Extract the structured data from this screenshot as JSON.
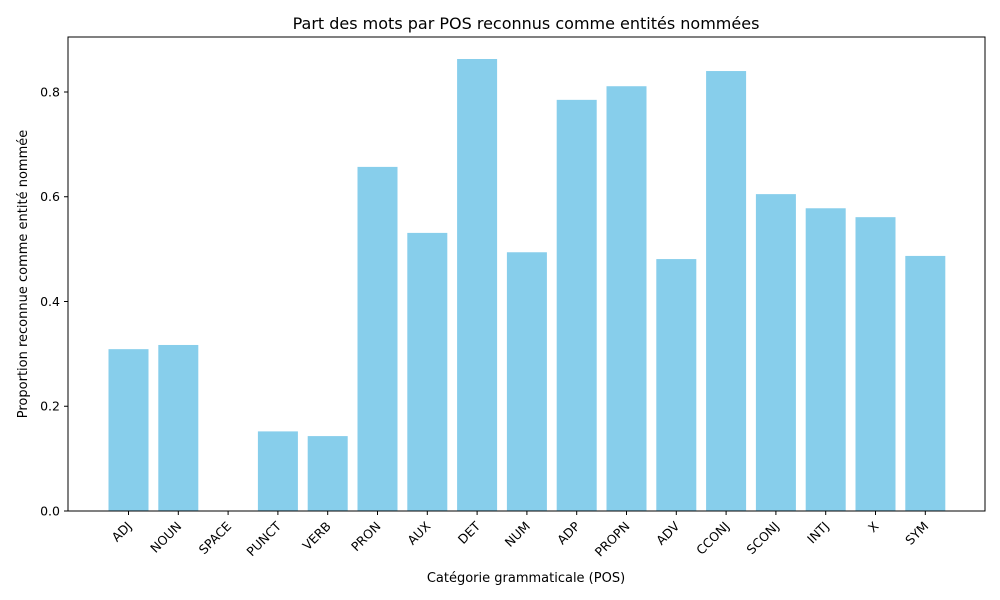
{
  "chart_data": {
    "type": "bar",
    "title": "Part des mots par POS reconnus comme entités nommées",
    "xlabel": "Catégorie grammaticale (POS)",
    "ylabel": "Proportion reconnue comme entité nommée",
    "categories": [
      "ADJ",
      "NOUN",
      "SPACE",
      "PUNCT",
      "VERB",
      "PRON",
      "AUX",
      "DET",
      "NUM",
      "ADP",
      "PROPN",
      "ADV",
      "CCONJ",
      "SCONJ",
      "INTJ",
      "X",
      "SYM"
    ],
    "values": [
      0.309,
      0.317,
      0.0,
      0.152,
      0.143,
      0.657,
      0.531,
      0.863,
      0.494,
      0.785,
      0.811,
      0.481,
      0.84,
      0.605,
      0.578,
      0.561,
      0.487
    ],
    "ylim": [
      0,
      0.905
    ],
    "yticks": [
      0.0,
      0.2,
      0.4,
      0.6,
      0.8
    ],
    "ytick_labels": [
      "0.0",
      "0.2",
      "0.4",
      "0.6",
      "0.8"
    ],
    "grid": false,
    "bar_color": "#87CEEB"
  }
}
